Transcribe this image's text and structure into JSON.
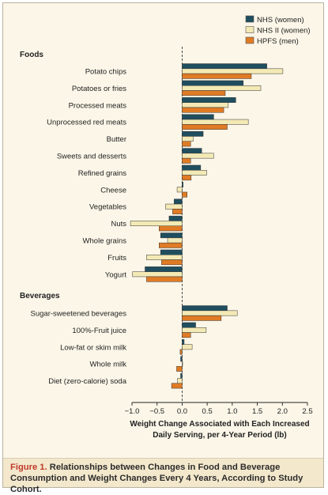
{
  "chart_data": {
    "type": "bar",
    "orientation": "horizontal",
    "series": [
      {
        "name": "NHS (women)",
        "color": "#1f4e5f"
      },
      {
        "name": "NHS II (women)",
        "color": "#f3e9b5"
      },
      {
        "name": "HPFS (men)",
        "color": "#e07b25"
      }
    ],
    "groups": [
      {
        "title": "Foods",
        "items": [
          {
            "label": "Potato chips",
            "values": [
              1.69,
              2.01,
              1.38
            ]
          },
          {
            "label": "Potatoes or fries",
            "values": [
              1.22,
              1.57,
              0.86
            ]
          },
          {
            "label": "Processed meats",
            "values": [
              1.07,
              0.92,
              0.83
            ]
          },
          {
            "label": "Unprocessed red meats",
            "values": [
              0.63,
              1.32,
              0.9
            ]
          },
          {
            "label": "Butter",
            "values": [
              0.42,
              0.22,
              0.17
            ]
          },
          {
            "label": "Sweets and desserts",
            "values": [
              0.39,
              0.63,
              0.17
            ]
          },
          {
            "label": "Refined grains",
            "values": [
              0.37,
              0.49,
              0.18
            ]
          },
          {
            "label": "Cheese",
            "values": [
              0.02,
              -0.1,
              0.1
            ]
          },
          {
            "label": "Vegetables",
            "values": [
              -0.16,
              -0.33,
              -0.19
            ]
          },
          {
            "label": "Nuts",
            "values": [
              -0.26,
              -1.03,
              -0.46
            ]
          },
          {
            "label": "Whole grains",
            "values": [
              -0.43,
              -0.29,
              -0.46
            ]
          },
          {
            "label": "Fruits",
            "values": [
              -0.43,
              -0.71,
              -0.41
            ]
          },
          {
            "label": "Yogurt",
            "values": [
              -0.74,
              -0.99,
              -0.71
            ]
          }
        ]
      },
      {
        "title": "Beverages",
        "items": [
          {
            "label": "Sugar-sweetened beverages",
            "values": [
              0.9,
              1.1,
              0.78
            ]
          },
          {
            "label": "100%-Fruit juice",
            "values": [
              0.27,
              0.48,
              0.17
            ]
          },
          {
            "label": "Low-fat or skim milk",
            "values": [
              0.04,
              0.2,
              -0.04
            ]
          },
          {
            "label": "Whole milk",
            "values": [
              -0.03,
              0.0,
              -0.11
            ]
          },
          {
            "label": "Diet (zero-calorie) soda",
            "values": [
              -0.03,
              -0.09,
              -0.21
            ]
          }
        ]
      }
    ],
    "xlim": [
      -1.0,
      2.5
    ],
    "xticks": [
      "−1.0",
      "−0.5",
      "0.0",
      "0.5",
      "1.0",
      "1.5",
      "2.0",
      "2.5"
    ],
    "xtick_values": [
      -1.0,
      -0.5,
      0.0,
      0.5,
      1.0,
      1.5,
      2.0,
      2.5
    ],
    "xlabel_line1": "Weight Change Associated with Each Increased",
    "xlabel_line2": "Daily Serving, per 4-Year Period (lb)",
    "legend_position": "top-right",
    "zero_line": "dashed"
  },
  "caption": {
    "figure_label": "Figure 1.",
    "text": " Relationships between Changes in Food and Beverage Consumption and Weight Changes Every 4 Years, According to Study Cohort."
  }
}
